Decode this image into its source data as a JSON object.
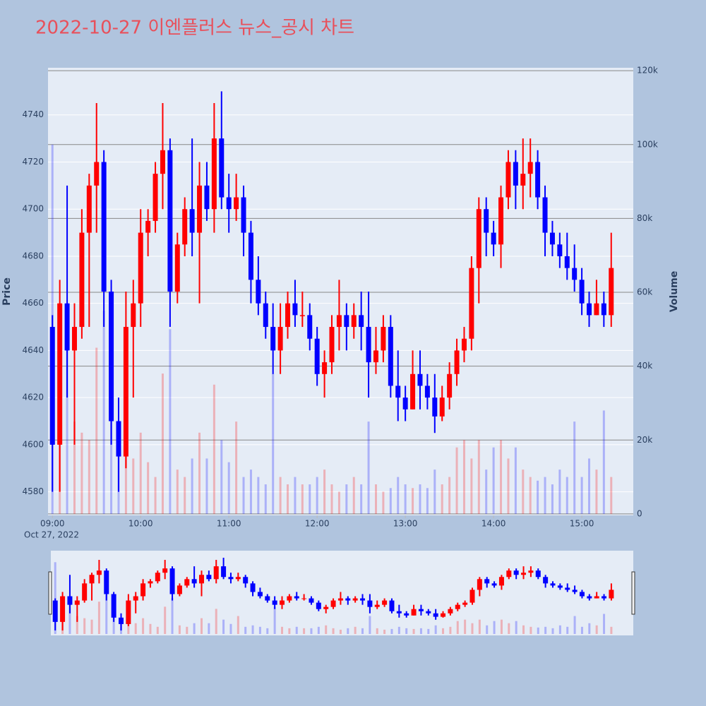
{
  "chart_data": {
    "type": "candlestick",
    "title": "2022-10-27 이엔플러스 뉴스_공시 차트",
    "ylabel": "Price",
    "y2label": "Volume",
    "x_date_label": "Oct 27, 2022",
    "increasing_color": "#ff0000",
    "decreasing_color": "#0000ff",
    "x": [
      "2022-10-27 09:00",
      "2022-10-27 09:05",
      "2022-10-27 09:10",
      "2022-10-27 09:15",
      "2022-10-27 09:20",
      "2022-10-27 09:25",
      "2022-10-27 09:30",
      "2022-10-27 09:35",
      "2022-10-27 09:40",
      "2022-10-27 09:45",
      "2022-10-27 09:50",
      "2022-10-27 09:55",
      "2022-10-27 10:00",
      "2022-10-27 10:05",
      "2022-10-27 10:10",
      "2022-10-27 10:15",
      "2022-10-27 10:20",
      "2022-10-27 10:25",
      "2022-10-27 10:30",
      "2022-10-27 10:35",
      "2022-10-27 10:40",
      "2022-10-27 10:45",
      "2022-10-27 10:50",
      "2022-10-27 10:55",
      "2022-10-27 11:00",
      "2022-10-27 11:05",
      "2022-10-27 11:10",
      "2022-10-27 11:15",
      "2022-10-27 11:20",
      "2022-10-27 11:25",
      "2022-10-27 11:30",
      "2022-10-27 11:35",
      "2022-10-27 11:40",
      "2022-10-27 11:45",
      "2022-10-27 11:50",
      "2022-10-27 11:55",
      "2022-10-27 12:00",
      "2022-10-27 12:05",
      "2022-10-27 12:10",
      "2022-10-27 12:15",
      "2022-10-27 12:20",
      "2022-10-27 12:25",
      "2022-10-27 12:30",
      "2022-10-27 12:35",
      "2022-10-27 12:40",
      "2022-10-27 12:45",
      "2022-10-27 12:50",
      "2022-10-27 12:55",
      "2022-10-27 13:00",
      "2022-10-27 13:05",
      "2022-10-27 13:10",
      "2022-10-27 13:15",
      "2022-10-27 13:20",
      "2022-10-27 13:25",
      "2022-10-27 13:30",
      "2022-10-27 13:35",
      "2022-10-27 13:40",
      "2022-10-27 13:45",
      "2022-10-27 13:50",
      "2022-10-27 13:55",
      "2022-10-27 14:00",
      "2022-10-27 14:05",
      "2022-10-27 14:10",
      "2022-10-27 14:15",
      "2022-10-27 14:20",
      "2022-10-27 14:25",
      "2022-10-27 14:30",
      "2022-10-27 14:35",
      "2022-10-27 14:40",
      "2022-10-27 14:45",
      "2022-10-27 14:50",
      "2022-10-27 14:55",
      "2022-10-27 15:00",
      "2022-10-27 15:05",
      "2022-10-27 15:10",
      "2022-10-27 15:15",
      "2022-10-27 15:20"
    ],
    "open": [
      4650,
      4600,
      4660,
      4640,
      4650,
      4690,
      4710,
      4720,
      4665,
      4610,
      4595,
      4650,
      4660,
      4690,
      4695,
      4715,
      4725,
      4665,
      4685,
      4700,
      4690,
      4710,
      4700,
      4730,
      4705,
      4700,
      4705,
      4690,
      4670,
      4660,
      4650,
      4640,
      4650,
      4660,
      4655,
      4655,
      4645,
      4630,
      4635,
      4650,
      4655,
      4650,
      4655,
      4650,
      4635,
      4640,
      4650,
      4625,
      4620,
      4615,
      4630,
      4625,
      4620,
      4612,
      4620,
      4630,
      4640,
      4645,
      4675,
      4700,
      4690,
      4685,
      4705,
      4720,
      4710,
      4715,
      4720,
      4705,
      4690,
      4685,
      4680,
      4675,
      4670,
      4660,
      4655,
      4660,
      4655
    ],
    "high": [
      4655,
      4670,
      4710,
      4660,
      4700,
      4715,
      4745,
      4725,
      4670,
      4620,
      4665,
      4670,
      4700,
      4700,
      4720,
      4745,
      4730,
      4690,
      4705,
      4730,
      4720,
      4720,
      4745,
      4750,
      4715,
      4715,
      4710,
      4695,
      4680,
      4665,
      4660,
      4660,
      4665,
      4670,
      4665,
      4660,
      4650,
      4640,
      4655,
      4670,
      4660,
      4660,
      4665,
      4665,
      4650,
      4655,
      4655,
      4640,
      4625,
      4640,
      4640,
      4630,
      4630,
      4625,
      4635,
      4645,
      4650,
      4680,
      4705,
      4705,
      4695,
      4710,
      4725,
      4725,
      4730,
      4730,
      4725,
      4710,
      4695,
      4690,
      4690,
      4685,
      4675,
      4665,
      4670,
      4665,
      4690
    ],
    "low": [
      4580,
      4580,
      4620,
      4600,
      4645,
      4650,
      4690,
      4650,
      4600,
      4580,
      4590,
      4620,
      4650,
      4680,
      4690,
      4700,
      4650,
      4660,
      4680,
      4680,
      4660,
      4695,
      4690,
      4700,
      4690,
      4695,
      4680,
      4660,
      4655,
      4645,
      4630,
      4630,
      4645,
      4650,
      4650,
      4640,
      4625,
      4620,
      4630,
      4640,
      4640,
      4645,
      4640,
      4620,
      4630,
      4635,
      4620,
      4610,
      4610,
      4615,
      4615,
      4615,
      4605,
      4610,
      4615,
      4625,
      4635,
      4640,
      4660,
      4680,
      4680,
      4675,
      4700,
      4700,
      4700,
      4705,
      4700,
      4680,
      4680,
      4675,
      4670,
      4665,
      4655,
      4650,
      4655,
      4650,
      4650
    ],
    "close": [
      4600,
      4660,
      4640,
      4650,
      4690,
      4710,
      4720,
      4665,
      4610,
      4595,
      4650,
      4660,
      4690,
      4695,
      4715,
      4725,
      4665,
      4685,
      4700,
      4690,
      4710,
      4700,
      4730,
      4705,
      4700,
      4705,
      4690,
      4670,
      4660,
      4650,
      4640,
      4650,
      4660,
      4655,
      4655,
      4645,
      4630,
      4635,
      4650,
      4655,
      4650,
      4655,
      4650,
      4635,
      4640,
      4650,
      4625,
      4620,
      4615,
      4630,
      4625,
      4620,
      4612,
      4620,
      4630,
      4640,
      4645,
      4675,
      4700,
      4690,
      4685,
      4705,
      4720,
      4710,
      4715,
      4720,
      4705,
      4690,
      4685,
      4680,
      4675,
      4670,
      4660,
      4655,
      4660,
      4655,
      4675
    ],
    "volume": [
      100000,
      30000,
      45000,
      25000,
      22000,
      20000,
      45000,
      55000,
      30000,
      18000,
      20000,
      15000,
      22000,
      14000,
      10000,
      38000,
      50000,
      12000,
      10000,
      15000,
      22000,
      15000,
      35000,
      20000,
      14000,
      25000,
      10000,
      12000,
      10000,
      8000,
      38000,
      10000,
      8000,
      10000,
      8000,
      8000,
      10000,
      12000,
      8000,
      6000,
      8000,
      10000,
      8000,
      25000,
      8000,
      6000,
      7000,
      10000,
      8000,
      7000,
      8000,
      7000,
      12000,
      8000,
      10000,
      18000,
      20000,
      15000,
      20000,
      12000,
      18000,
      20000,
      15000,
      18000,
      12000,
      10000,
      9000,
      10000,
      8000,
      12000,
      10000,
      25000,
      10000,
      15000,
      12000,
      28000,
      10000
    ],
    "xlim": [
      "2022-10-27 08:57",
      "2022-10-27 15:35"
    ],
    "xticks": [
      {
        "value": "2022-10-27 09:00",
        "label": "09:00"
      },
      {
        "value": "2022-10-27 10:00",
        "label": "10:00"
      },
      {
        "value": "2022-10-27 11:00",
        "label": "11:00"
      },
      {
        "value": "2022-10-27 12:00",
        "label": "12:00"
      },
      {
        "value": "2022-10-27 13:00",
        "label": "13:00"
      },
      {
        "value": "2022-10-27 14:00",
        "label": "14:00"
      },
      {
        "value": "2022-10-27 15:00",
        "label": "15:00"
      }
    ],
    "ylim": [
      4570,
      4760
    ],
    "yticks": [
      4580,
      4600,
      4620,
      4640,
      4660,
      4680,
      4700,
      4720,
      4740
    ],
    "y2lim": [
      -400,
      120800
    ],
    "y2ticks": [
      0,
      {
        "value": 20000,
        "label": "20k"
      },
      {
        "value": 40000,
        "label": "40k"
      },
      {
        "value": 60000,
        "label": "60k"
      },
      {
        "value": 80000,
        "label": "80k"
      },
      {
        "value": 100000,
        "label": "100k"
      },
      {
        "value": 120000,
        "label": "120k"
      }
    ],
    "grid": true
  }
}
